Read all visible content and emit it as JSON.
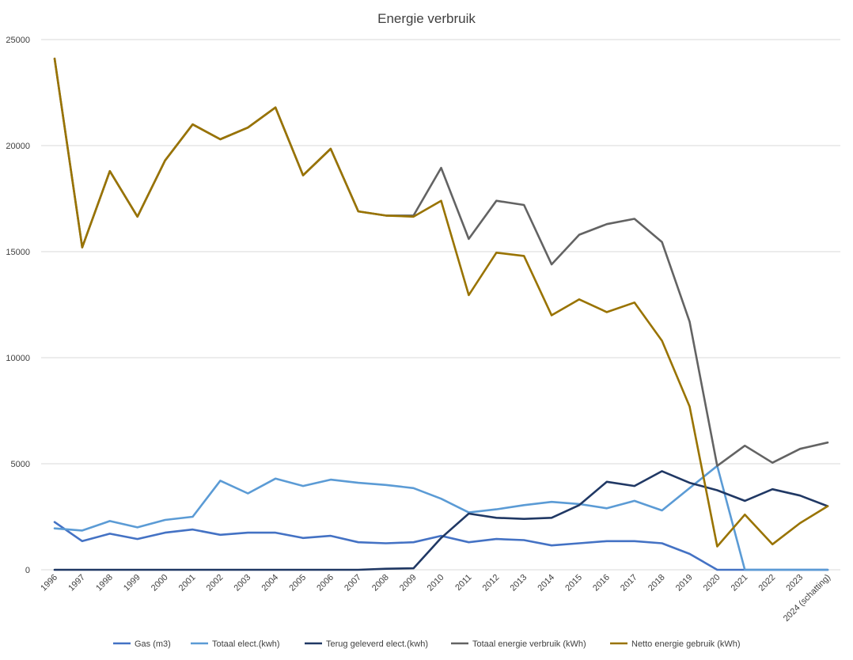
{
  "chart_data": {
    "type": "line",
    "title": "Energie verbruik",
    "xlabel": "",
    "ylabel": "",
    "ylim": [
      0,
      25000
    ],
    "yticks": [
      0,
      5000,
      10000,
      15000,
      20000,
      25000
    ],
    "grid": true,
    "legend_position": "bottom",
    "categories": [
      "1996",
      "1997",
      "1998",
      "1999",
      "2000",
      "2001",
      "2002",
      "2003",
      "2004",
      "2005",
      "2006",
      "2007",
      "2008",
      "2009",
      "2010",
      "2011",
      "2012",
      "2013",
      "2014",
      "2015",
      "2016",
      "2017",
      "2018",
      "2019",
      "2020",
      "2021",
      "2022",
      "2023",
      "2024 (schatting)"
    ],
    "series": [
      {
        "name": "Gas (m3)",
        "color": "#4472c4",
        "values": [
          2250,
          1350,
          1700,
          1450,
          1750,
          1900,
          1650,
          1750,
          1750,
          1500,
          1600,
          1300,
          1250,
          1300,
          1600,
          1300,
          1450,
          1400,
          1150,
          1250,
          1350,
          1350,
          1250,
          750,
          0,
          0,
          0,
          0,
          0
        ]
      },
      {
        "name": "Totaal elect.(kwh)",
        "color": "#5b9bd5",
        "values": [
          1950,
          1850,
          2300,
          2000,
          2350,
          2500,
          4200,
          3600,
          4300,
          3950,
          4250,
          4100,
          4000,
          3850,
          3350,
          2700,
          2850,
          3050,
          3200,
          3100,
          2900,
          3250,
          2800,
          3850,
          4900,
          0,
          0,
          0,
          0
        ]
      },
      {
        "name": "Terug geleverd elect.(kwh)",
        "color": "#203864",
        "values": [
          0,
          0,
          0,
          0,
          0,
          0,
          0,
          0,
          0,
          0,
          0,
          0,
          50,
          70,
          1500,
          2650,
          2450,
          2400,
          2450,
          3050,
          4150,
          3950,
          4650,
          4100,
          3750,
          3250,
          3800,
          3500,
          3000
        ]
      },
      {
        "name": "Totaal energie verbruik (kWh)",
        "color": "#636363",
        "values": [
          24100,
          15200,
          18800,
          16650,
          19300,
          21000,
          20300,
          20850,
          21800,
          18600,
          19850,
          16900,
          16700,
          16700,
          18950,
          15600,
          17400,
          17200,
          14400,
          15800,
          16300,
          16550,
          15450,
          11700,
          4900,
          5850,
          5050,
          5700,
          6000
        ]
      },
      {
        "name": "Netto energie gebruik (kWh)",
        "color": "#997300",
        "values": [
          24100,
          15200,
          18800,
          16650,
          19300,
          21000,
          20300,
          20850,
          21800,
          18600,
          19850,
          16900,
          16700,
          16650,
          17400,
          12950,
          14950,
          14800,
          12000,
          12750,
          12150,
          12600,
          10800,
          7700,
          1100,
          2600,
          1200,
          2200,
          3000
        ]
      }
    ]
  }
}
